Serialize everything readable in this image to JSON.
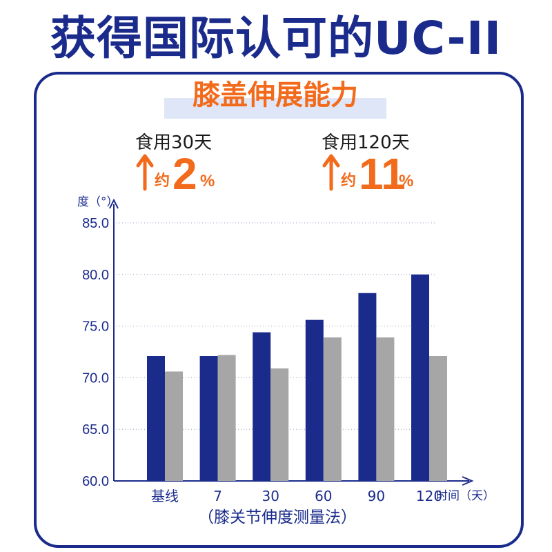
{
  "headline": "获得国际认可的UC-II",
  "subtitle": "膝盖伸展能力",
  "stats": [
    {
      "label": "食用30天",
      "approx": "约",
      "number": "2",
      "unit": "%"
    },
    {
      "label": "食用120天",
      "approx": "约",
      "number": "11",
      "unit": "%"
    }
  ],
  "footnote": "（膝关节伸度测量法）",
  "colors": {
    "navy": "#1a2b8c",
    "orange": "#f26a1b",
    "gray": "#a6a6a6",
    "highlight": "#dfe6f7"
  },
  "chart_data": {
    "type": "bar",
    "xlabel": "时间（天）",
    "ylabel": "度（°）",
    "ylim": [
      60,
      85
    ],
    "yticks": [
      "60.0",
      "65.0",
      "70.0",
      "75.0",
      "80.0",
      "85.0"
    ],
    "categories": [
      "基线",
      "7",
      "30",
      "60",
      "90",
      "120"
    ],
    "series": [
      {
        "color": "#1a2b8c",
        "values": [
          72.1,
          72.1,
          74.4,
          75.6,
          78.2,
          80.0
        ]
      },
      {
        "color": "#a6a6a6",
        "values": [
          70.6,
          72.2,
          70.9,
          73.9,
          73.9,
          72.1
        ]
      }
    ],
    "grid": true
  }
}
